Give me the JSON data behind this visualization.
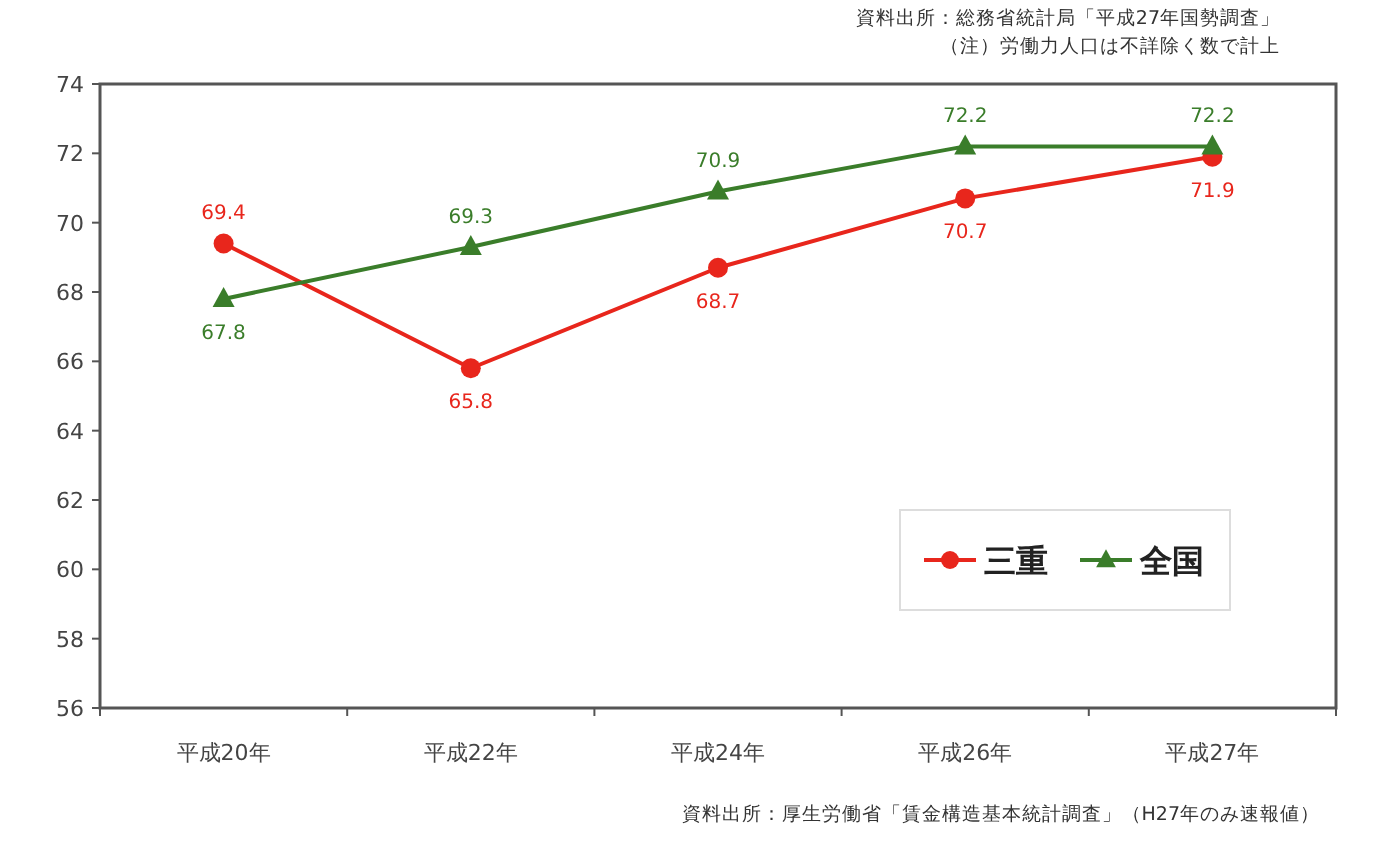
{
  "chart_data": {
    "type": "line",
    "categories": [
      "平成20年",
      "平成22年",
      "平成24年",
      "平成26年",
      "平成27年"
    ],
    "series": [
      {
        "name": "三重",
        "color": "#e8261c",
        "values": [
          69.4,
          65.8,
          68.7,
          70.7,
          71.9
        ],
        "marker": "circle"
      },
      {
        "name": "全国",
        "color": "#3a7d2a",
        "values": [
          67.8,
          69.3,
          70.9,
          72.2,
          72.2
        ],
        "marker": "triangle"
      }
    ],
    "ylim": [
      56,
      74
    ],
    "yticks": [
      56,
      58,
      60,
      62,
      64,
      66,
      68,
      70,
      72,
      74
    ],
    "data_labels": true,
    "grid": false,
    "legend": "bottom right",
    "line_style": "solid",
    "annotations": [
      "資料出所：総務省統計局「平成27年国勢調査」",
      "（注）労働力人口は不詳除く数で計上",
      "資料出所：厚生労働省「賃金構造基本統計調査」（H27年のみ速報値）"
    ]
  }
}
